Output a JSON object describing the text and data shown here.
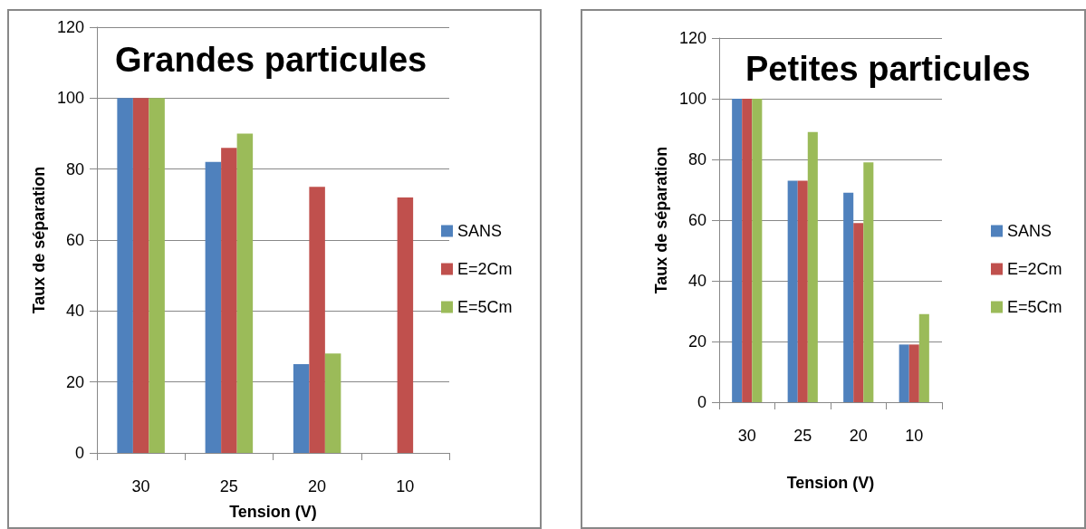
{
  "chart_data": [
    {
      "type": "bar",
      "title": "Grandes particules",
      "xlabel": "Tension (V)",
      "ylabel": "Taux de séparation",
      "categories": [
        "30",
        "25",
        "20",
        "10"
      ],
      "series": [
        {
          "name": "SANS",
          "color": "#4f81bd",
          "values": [
            100,
            82,
            25,
            null
          ]
        },
        {
          "name": "E=2Cm",
          "color": "#c0504d",
          "values": [
            100,
            86,
            75,
            72
          ]
        },
        {
          "name": "E=5Cm",
          "color": "#9bbb59",
          "values": [
            100,
            90,
            28,
            null
          ]
        }
      ],
      "ylim": [
        0,
        120
      ],
      "yticks": [
        0,
        20,
        40,
        60,
        80,
        100,
        120
      ],
      "grid": "y",
      "legend": "right"
    },
    {
      "type": "bar",
      "title": "Petites particules",
      "xlabel": "Tension (V)",
      "ylabel": "Taux de séparation",
      "categories": [
        "30",
        "25",
        "20",
        "10"
      ],
      "series": [
        {
          "name": "SANS",
          "color": "#4f81bd",
          "values": [
            100,
            73,
            69,
            19
          ]
        },
        {
          "name": "E=2Cm",
          "color": "#c0504d",
          "values": [
            100,
            73,
            59,
            19
          ]
        },
        {
          "name": "E=5Cm",
          "color": "#9bbb59",
          "values": [
            100,
            89,
            79,
            29
          ]
        }
      ],
      "ylim": [
        0,
        120
      ],
      "yticks": [
        0,
        20,
        40,
        60,
        80,
        100,
        120
      ],
      "grid": "y",
      "legend": "right"
    }
  ]
}
